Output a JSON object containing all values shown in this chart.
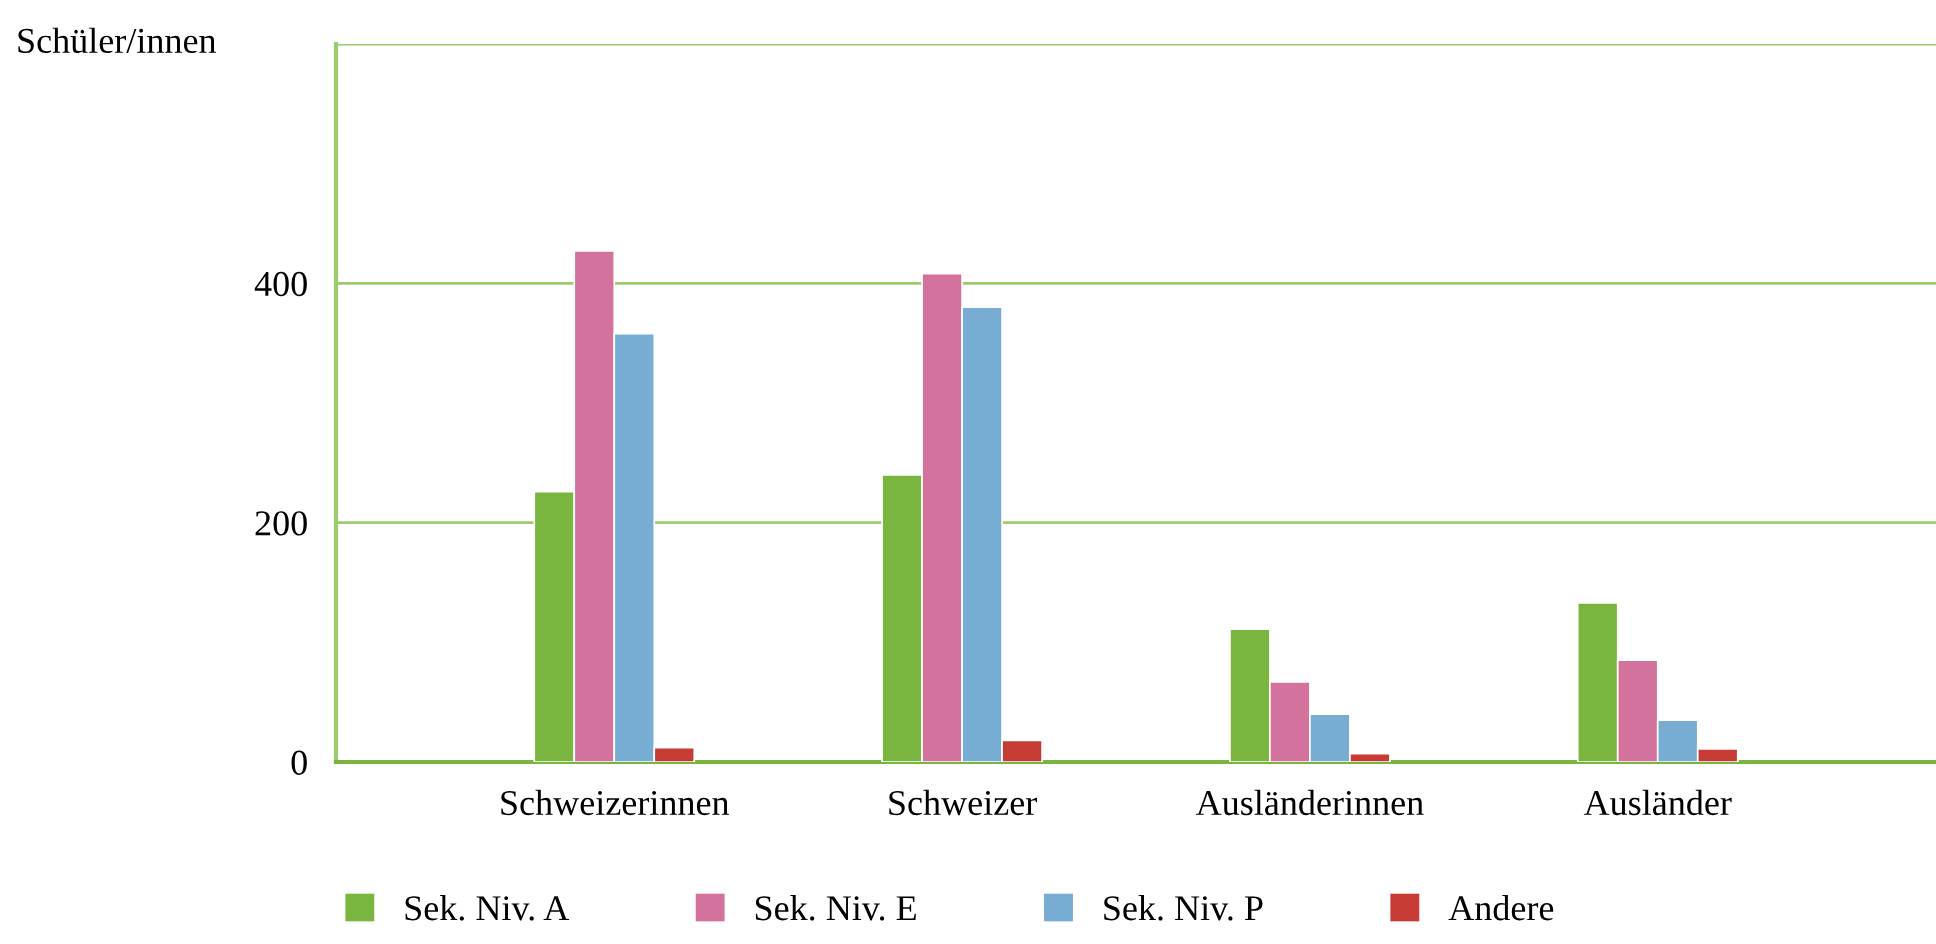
{
  "chart_data": {
    "type": "bar",
    "ylabel": "Schüler/innen",
    "categories": [
      "Schweizerinnen",
      "Schweizer",
      "Ausländerinnen",
      "Ausländer"
    ],
    "series": [
      {
        "name": "Sek. Niv. A",
        "color": "#7ab63f",
        "values": [
          226,
          240,
          111,
          133
        ]
      },
      {
        "name": "Sek. Niv. E",
        "color": "#d4729e",
        "values": [
          427,
          408,
          67,
          85
        ]
      },
      {
        "name": "Sek. Niv. P",
        "color": "#77acd3",
        "values": [
          358,
          380,
          40,
          35
        ]
      },
      {
        "name": "Andere",
        "color": "#c63b33",
        "values": [
          12,
          18,
          7,
          11
        ]
      }
    ],
    "ylim": [
      0,
      600
    ],
    "yticks": [
      0,
      200,
      400,
      {
        "value": 600,
        "label": null
      }
    ],
    "grid": "y",
    "legend": "bottom"
  }
}
